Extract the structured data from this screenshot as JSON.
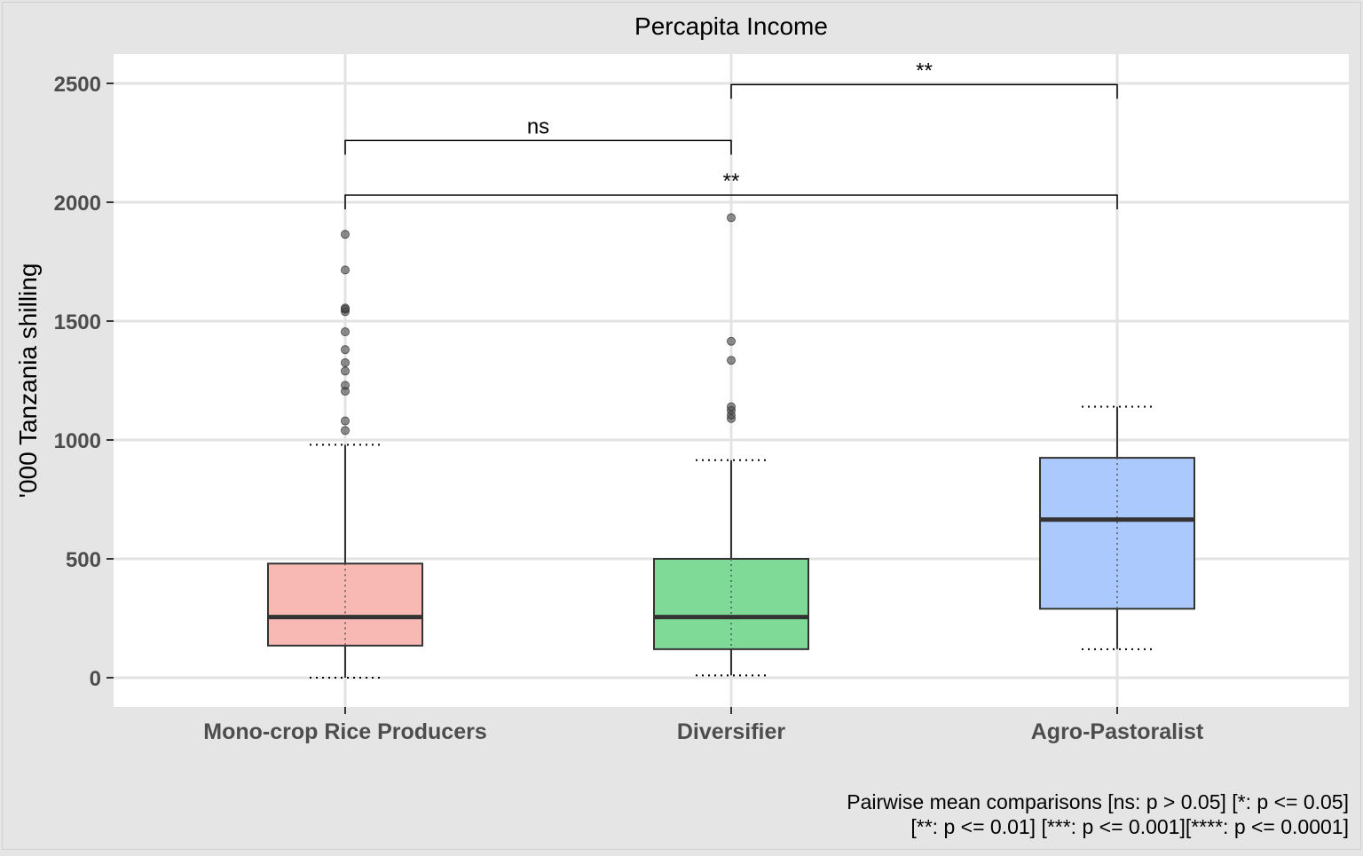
{
  "chart_data": {
    "type": "boxplot",
    "title": "Percapita Income",
    "ylabel": "'000 Tanzania shilling",
    "xlabel": "",
    "ylim": [
      -120,
      2625
    ],
    "yticks": [
      0,
      500,
      1000,
      1500,
      2000,
      2500
    ],
    "categories": [
      "Mono-crop Rice Producers",
      "Diversifier",
      "Agro-Pastoralist"
    ],
    "grid": true,
    "boxes": [
      {
        "category": "Mono-crop Rice Producers",
        "color": "#f8b9b4",
        "whisker_low": 0,
        "q1": 135,
        "median": 255,
        "q3": 480,
        "whisker_high": 980,
        "min_marker": 0,
        "max_marker": 980,
        "outliers": [
          1040,
          1080,
          1205,
          1230,
          1290,
          1325,
          1380,
          1455,
          1540,
          1550,
          1555,
          1715,
          1865
        ]
      },
      {
        "category": "Diversifier",
        "color": "#7fd997",
        "whisker_low": 10,
        "q1": 120,
        "median": 255,
        "q3": 500,
        "whisker_high": 915,
        "min_marker": 10,
        "max_marker": 915,
        "outliers": [
          1090,
          1105,
          1125,
          1140,
          1335,
          1415,
          1935
        ]
      },
      {
        "category": "Agro-Pastoralist",
        "color": "#abc9fc",
        "whisker_low": 120,
        "q1": 290,
        "median": 665,
        "q3": 925,
        "whisker_high": 1140,
        "min_marker": 120,
        "max_marker": 1140,
        "outliers": []
      }
    ],
    "comparisons": [
      {
        "from": "Mono-crop Rice Producers",
        "to": "Diversifier",
        "y": 2260,
        "label": "ns"
      },
      {
        "from": "Diversifier",
        "to": "Agro-Pastoralist",
        "y": 2495,
        "label": "**"
      },
      {
        "from": "Mono-crop Rice Producers",
        "to": "Agro-Pastoralist",
        "y": 2030,
        "label": "**"
      }
    ],
    "caption_lines": [
      "Pairwise mean comparisons [ns: p > 0.05] [*: p <= 0.05]",
      "[**: p <= 0.01] [***: p <= 0.001][****: p <= 0.0001]"
    ]
  }
}
